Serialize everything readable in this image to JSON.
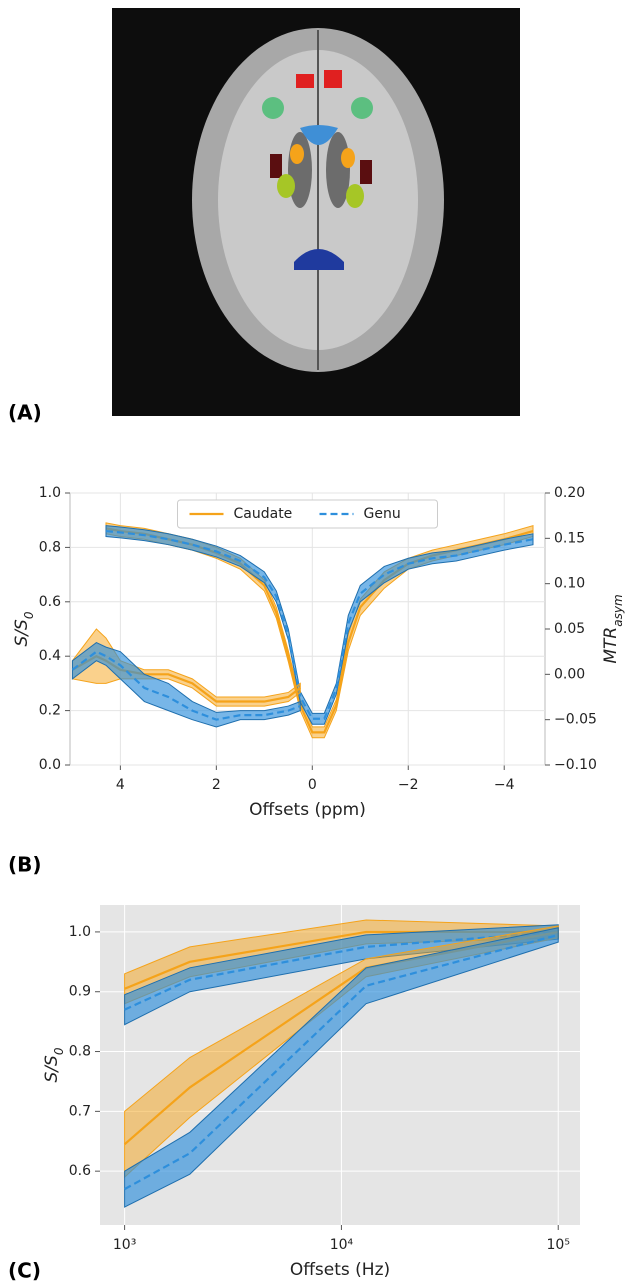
{
  "panel_labels": [
    "(A)",
    "(B)",
    "(C)"
  ],
  "chart_data": [
    {
      "type": "line",
      "x_label": "Offsets (ppm)",
      "y_label": {
        "base": "S/S",
        "sub": "0"
      },
      "y2_label": {
        "base": "MTR",
        "sub": "asym"
      },
      "xlim": [
        5.05,
        -4.85
      ],
      "xticks": [
        4,
        2,
        {
          "value": 0,
          "label": "0"
        },
        {
          "value": -2,
          "label": "−2"
        },
        {
          "value": -4,
          "label": "−4"
        }
      ],
      "ylim": [
        0,
        1
      ],
      "yticks": [
        {
          "value": 0,
          "label": "0.0"
        },
        0.2,
        0.4,
        0.6,
        0.8,
        {
          "value": 1,
          "label": "1.0"
        }
      ],
      "y2lim": [
        -0.1,
        0.2
      ],
      "y2ticks": [
        {
          "value": -0.1,
          "label": "−0.10"
        },
        {
          "value": -0.05,
          "label": "−0.05"
        },
        {
          "value": 0,
          "label": "0.00"
        },
        0.05,
        {
          "value": 0.1,
          "label": "0.10"
        },
        0.15,
        {
          "value": 0.2,
          "label": "0.20"
        }
      ],
      "grid": true,
      "legend": "upper center",
      "series": [
        {
          "name": "Caudate",
          "color": "#f5a31a",
          "dashed": false,
          "x": [
            4.3,
            4,
            3.5,
            3,
            2.5,
            2,
            1.5,
            1,
            0.75,
            0.5,
            0.25,
            0,
            -0.25,
            -0.5,
            -0.75,
            -1,
            -1.5,
            -2,
            -2.5,
            -3,
            -3.5,
            -4,
            -4.6
          ],
          "values": [
            0.87,
            0.86,
            0.85,
            0.83,
            0.81,
            0.78,
            0.74,
            0.66,
            0.56,
            0.4,
            0.22,
            0.12,
            0.12,
            0.22,
            0.45,
            0.58,
            0.68,
            0.74,
            0.77,
            0.79,
            0.81,
            0.83,
            0.86
          ],
          "errors": [
            0.02,
            0.02,
            0.02,
            0.02,
            0.02,
            0.02,
            0.02,
            0.02,
            0.02,
            0.02,
            0.02,
            0.02,
            0.02,
            0.02,
            0.03,
            0.03,
            0.03,
            0.02,
            0.02,
            0.02,
            0.02,
            0.02,
            0.02
          ]
        },
        {
          "name": "Genu",
          "color": "#2e8fdc",
          "dashed": true,
          "x": [
            4.3,
            4,
            3.5,
            3,
            2.5,
            2,
            1.5,
            1,
            0.75,
            0.5,
            0.25,
            0,
            -0.25,
            -0.5,
            -0.75,
            -1,
            -1.5,
            -2,
            -2.5,
            -3,
            -3.5,
            -4,
            -4.6
          ],
          "values": [
            0.86,
            0.855,
            0.845,
            0.83,
            0.81,
            0.785,
            0.75,
            0.69,
            0.62,
            0.48,
            0.25,
            0.17,
            0.17,
            0.28,
            0.52,
            0.63,
            0.7,
            0.74,
            0.76,
            0.77,
            0.79,
            0.81,
            0.83
          ],
          "errors": [
            0.02,
            0.02,
            0.02,
            0.02,
            0.02,
            0.02,
            0.02,
            0.02,
            0.02,
            0.02,
            0.02,
            0.02,
            0.02,
            0.02,
            0.03,
            0.03,
            0.03,
            0.02,
            0.02,
            0.02,
            0.02,
            0.02,
            0.02
          ]
        },
        {
          "axis": "y2",
          "color": "#f5a31a",
          "dashed": false,
          "x": [
            5,
            4.5,
            4.3,
            4,
            3.5,
            3,
            2.5,
            2,
            1.5,
            1,
            0.5,
            0.25
          ],
          "values": [
            0.005,
            0.02,
            0.015,
            0.005,
            0,
            0,
            -0.01,
            -0.03,
            -0.03,
            -0.03,
            -0.025,
            -0.015
          ],
          "errors": [
            0.01,
            0.03,
            0.025,
            0.01,
            0.005,
            0.005,
            0.005,
            0.005,
            0.005,
            0.005,
            0.005,
            0.005
          ]
        },
        {
          "axis": "y2",
          "color": "#2e8fdc",
          "dashed": true,
          "x": [
            5,
            4.5,
            4.3,
            4,
            3.5,
            3,
            2.5,
            2,
            1.5,
            1,
            0.5,
            0.25
          ],
          "values": [
            0.005,
            0.025,
            0.02,
            0.01,
            -0.015,
            -0.025,
            -0.04,
            -0.05,
            -0.045,
            -0.045,
            -0.04,
            -0.035
          ],
          "errors": [
            0.01,
            0.01,
            0.01,
            0.015,
            0.015,
            0.015,
            0.01,
            0.008,
            0.005,
            0.005,
            0.005,
            0.005
          ]
        }
      ]
    },
    {
      "type": "line",
      "x_label": "Offsets (Hz)",
      "y_label": {
        "base": "S/S",
        "sub": "0"
      },
      "xscale": "log",
      "xlim": [
        770,
        126000
      ],
      "xticks": [
        {
          "value": 1000,
          "label": "10³"
        },
        {
          "value": 10000,
          "label": "10⁴"
        },
        {
          "value": 100000,
          "label": "10⁵"
        }
      ],
      "ylim": [
        0.51,
        1.045
      ],
      "yticks": [
        0.6,
        0.7,
        0.8,
        0.9,
        {
          "value": 1,
          "label": "1.0"
        }
      ],
      "grid": true,
      "series": [
        {
          "color": "#f5a31a",
          "dashed": false,
          "x": [
            1000,
            2000,
            13000,
            100000
          ],
          "values": [
            0.905,
            0.95,
            1.0,
            1.0
          ],
          "errors": [
            0.025,
            0.025,
            0.02,
            0.01
          ]
        },
        {
          "color": "#2e8fdc",
          "dashed": true,
          "x": [
            1000,
            2000,
            13000,
            100000
          ],
          "values": [
            0.87,
            0.92,
            0.975,
            1.0
          ],
          "errors": [
            0.025,
            0.02,
            0.02,
            0.012
          ]
        },
        {
          "color": "#f5a31a",
          "dashed": false,
          "x": [
            1000,
            2000,
            13000,
            100000
          ],
          "values": [
            0.645,
            0.74,
            0.94,
            1.0
          ],
          "errors": [
            0.055,
            0.05,
            0.015,
            0.01
          ]
        },
        {
          "color": "#2e8fdc",
          "dashed": true,
          "x": [
            1000,
            2000,
            13000,
            100000
          ],
          "values": [
            0.57,
            0.63,
            0.91,
            0.995
          ],
          "errors": [
            0.03,
            0.035,
            0.03,
            0.012
          ]
        }
      ]
    }
  ]
}
